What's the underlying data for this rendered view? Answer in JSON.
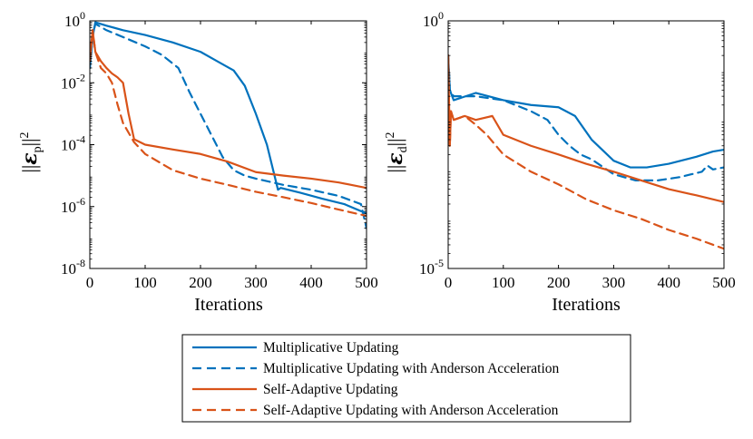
{
  "chart_data": [
    {
      "type": "line",
      "panel": "left",
      "ylabel": "||ε_p||²",
      "ylabel_symbol": "ε",
      "ylabel_sub": "p",
      "ylabel_sup": "2",
      "xlabel": "Iterations",
      "yscale": "log",
      "xlim": [
        0,
        500
      ],
      "ylim": [
        1e-08,
        1
      ],
      "xticks": [
        0,
        100,
        200,
        300,
        400,
        500
      ],
      "xtick_labels": [
        "0",
        "100",
        "200",
        "300",
        "400",
        "500"
      ],
      "ytick_exponents": [
        -8,
        -6,
        -4,
        -2,
        0
      ],
      "ytick_bases": [
        "10",
        "10",
        "10",
        "10",
        "10"
      ],
      "ytick_powers": [
        "-8",
        "-6",
        "-4",
        "-2",
        "0"
      ],
      "series": [
        {
          "name": "Multiplicative Updating",
          "color": "#0072BD",
          "dash": "solid",
          "x": [
            0,
            5,
            10,
            30,
            60,
            100,
            150,
            200,
            230,
            260,
            280,
            300,
            320,
            340,
            345,
            380,
            420,
            460,
            500
          ],
          "y": [
            0.03,
            0.3,
            0.9,
            0.7,
            0.5,
            0.35,
            0.2,
            0.1,
            0.05,
            0.025,
            0.008,
            0.001,
            0.0001,
            3.5e-06,
            4e-06,
            2.8e-06,
            1.8e-06,
            1.2e-06,
            6e-07
          ]
        },
        {
          "name": "Multiplicative Updating with Anderson Acceleration",
          "color": "#0072BD",
          "dash": "dashed",
          "x": [
            0,
            5,
            10,
            30,
            60,
            100,
            130,
            160,
            180,
            200,
            220,
            240,
            260,
            280,
            300,
            350,
            400,
            450,
            490,
            500
          ],
          "y": [
            0.03,
            0.3,
            0.8,
            0.5,
            0.3,
            0.15,
            0.08,
            0.03,
            0.005,
            0.001,
            0.0002,
            4e-05,
            1.5e-05,
            1e-05,
            8e-06,
            5e-06,
            3.5e-06,
            2.2e-06,
            1.2e-06,
            2e-07
          ]
        },
        {
          "name": "Self-Adaptive Updating",
          "color": "#D95319",
          "dash": "solid",
          "x": [
            0,
            5,
            10,
            20,
            30,
            40,
            50,
            60,
            70,
            80,
            100,
            150,
            200,
            250,
            300,
            350,
            400,
            450,
            500
          ],
          "y": [
            0.05,
            0.5,
            0.1,
            0.05,
            0.03,
            0.02,
            0.015,
            0.01,
            0.001,
            0.00015,
            0.0001,
            7e-05,
            5e-05,
            2.8e-05,
            1.3e-05,
            1e-05,
            8e-06,
            6e-06,
            4e-06
          ]
        },
        {
          "name": "Self-Adaptive Updating with Anderson Acceleration",
          "color": "#D95319",
          "dash": "dashed",
          "x": [
            0,
            5,
            10,
            20,
            30,
            40,
            50,
            60,
            80,
            100,
            150,
            200,
            250,
            300,
            350,
            400,
            450,
            500
          ],
          "y": [
            0.05,
            0.5,
            0.1,
            0.03,
            0.02,
            0.01,
            0.002,
            0.0005,
            0.00012,
            5e-05,
            1.5e-05,
            8e-06,
            5e-06,
            3e-06,
            2e-06,
            1.3e-06,
            8e-07,
            5e-07
          ]
        }
      ]
    },
    {
      "type": "line",
      "panel": "right",
      "ylabel": "||ε_d||²",
      "ylabel_symbol": "ε",
      "ylabel_sub": "d",
      "ylabel_sup": "2",
      "xlabel": "Iterations",
      "yscale": "log",
      "xlim": [
        0,
        500
      ],
      "ylim": [
        1e-05,
        1
      ],
      "xticks": [
        0,
        100,
        200,
        300,
        400,
        500
      ],
      "xtick_labels": [
        "0",
        "100",
        "200",
        "300",
        "400",
        "500"
      ],
      "ytick_exponents": [
        -5,
        0
      ],
      "ytick_bases": [
        "10",
        "10"
      ],
      "ytick_powers": [
        "-5",
        "0"
      ],
      "series": [
        {
          "name": "Multiplicative Updating",
          "color": "#0072BD",
          "dash": "solid",
          "x": [
            0,
            3,
            10,
            50,
            100,
            150,
            200,
            230,
            260,
            300,
            330,
            360,
            400,
            450,
            480,
            500
          ],
          "y": [
            0.2,
            0.04,
            0.025,
            0.035,
            0.025,
            0.02,
            0.018,
            0.012,
            0.004,
            0.0015,
            0.0011,
            0.0011,
            0.0013,
            0.0018,
            0.0023,
            0.0025
          ]
        },
        {
          "name": "Multiplicative Updating with Anderson Acceleration",
          "color": "#0072BD",
          "dash": "dashed",
          "x": [
            0,
            3,
            10,
            50,
            100,
            150,
            180,
            200,
            220,
            240,
            260,
            300,
            340,
            380,
            420,
            460,
            470,
            480,
            500
          ],
          "y": [
            0.2,
            0.04,
            0.03,
            0.03,
            0.025,
            0.015,
            0.01,
            0.005,
            0.003,
            0.002,
            0.0016,
            0.0008,
            0.0006,
            0.0006,
            0.0007,
            0.0009,
            0.0012,
            0.001,
            0.0011
          ]
        },
        {
          "name": "Self-Adaptive Updating",
          "color": "#D95319",
          "dash": "solid",
          "x": [
            0,
            3,
            5,
            10,
            30,
            50,
            80,
            100,
            150,
            200,
            250,
            300,
            350,
            400,
            450,
            500
          ],
          "y": [
            0.2,
            0.003,
            0.015,
            0.01,
            0.012,
            0.01,
            0.012,
            0.005,
            0.003,
            0.002,
            0.0013,
            0.0009,
            0.0006,
            0.0004,
            0.0003,
            0.00022
          ]
        },
        {
          "name": "Self-Adaptive Updating with Anderson Acceleration",
          "color": "#D95319",
          "dash": "dashed",
          "x": [
            0,
            3,
            5,
            10,
            30,
            50,
            70,
            100,
            150,
            200,
            250,
            300,
            350,
            400,
            450,
            500
          ],
          "y": [
            0.2,
            0.003,
            0.015,
            0.01,
            0.012,
            0.008,
            0.005,
            0.002,
            0.0009,
            0.0005,
            0.00025,
            0.00015,
            0.0001,
            6e-05,
            4e-05,
            2.5e-05
          ]
        }
      ]
    }
  ],
  "legend": {
    "entries": [
      {
        "label": "Multiplicative Updating",
        "color": "#0072BD",
        "dash": "solid"
      },
      {
        "label": "Multiplicative Updating with Anderson Acceleration",
        "color": "#0072BD",
        "dash": "dashed"
      },
      {
        "label": "Self-Adaptive Updating",
        "color": "#D95319",
        "dash": "solid"
      },
      {
        "label": "Self-Adaptive Updating with Anderson Acceleration",
        "color": "#D95319",
        "dash": "dashed"
      }
    ]
  }
}
